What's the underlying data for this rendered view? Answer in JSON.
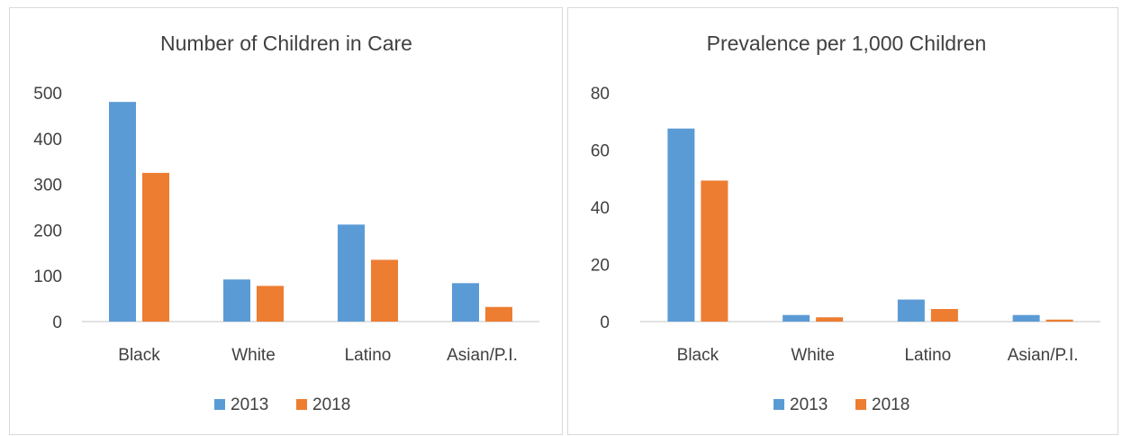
{
  "colors": {
    "series_2013": "#5b9bd5",
    "series_2018": "#ed7d31",
    "axis": "#d9d9d9"
  },
  "chart_data": [
    {
      "type": "bar",
      "title": "Number of Children in Care",
      "categories": [
        "Black",
        "White",
        "Latino",
        "Asian/P.I."
      ],
      "series": [
        {
          "name": "2013",
          "values": [
            480,
            92,
            212,
            84
          ]
        },
        {
          "name": "2018",
          "values": [
            325,
            78,
            135,
            32
          ]
        }
      ],
      "ylim": [
        0,
        500
      ],
      "yticks": [
        "0",
        "100",
        "200",
        "300",
        "400",
        "500"
      ],
      "grid": false,
      "legend": "bottom"
    },
    {
      "type": "bar",
      "title": "Prevalence per 1,000 Children",
      "categories": [
        "Black",
        "White",
        "Latino",
        "Asian/P.I."
      ],
      "series": [
        {
          "name": "2013",
          "values": [
            67.5,
            2.3,
            7.7,
            2.3
          ]
        },
        {
          "name": "2018",
          "values": [
            49.3,
            1.5,
            4.4,
            0.7
          ]
        }
      ],
      "ylim": [
        0,
        80
      ],
      "yticks": [
        "0",
        "20",
        "40",
        "60",
        "80"
      ],
      "grid": false,
      "legend": "bottom"
    }
  ]
}
